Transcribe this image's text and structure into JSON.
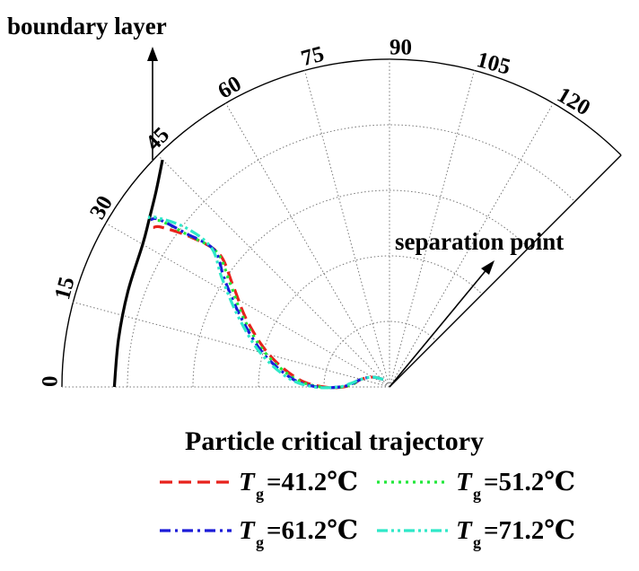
{
  "chart_data": {
    "type": "polar-half",
    "angle_unit": "degrees",
    "angle_ticks": [
      "0",
      "15",
      "30",
      "45",
      "60",
      "75",
      "90",
      "105",
      "120"
    ],
    "radial_gridlines": 5,
    "grid": true,
    "annotations": {
      "boundary_layer": "boundary layer",
      "separation_point": "separation point"
    },
    "boundary_layer_curve": {
      "r_normalized": [
        0.84,
        0.84,
        0.85,
        0.87,
        0.895,
        0.93,
        0.98
      ],
      "theta_deg": [
        0,
        10,
        20,
        30,
        35,
        40,
        45
      ]
    },
    "legend": {
      "title": "Particle critical trajectory",
      "prefix": "T",
      "subscript": "g",
      "placement": "bottom"
    },
    "series": [
      {
        "name": "=41.2℃",
        "color": "#e8221c",
        "dash": "dash",
        "points_r_theta": [
          [
            0.03,
            50
          ],
          [
            0.06,
            30
          ],
          [
            0.09,
            15
          ],
          [
            0.11,
            5
          ],
          [
            0.14,
            0
          ],
          [
            0.2,
            0
          ],
          [
            0.28,
            5
          ],
          [
            0.38,
            15
          ],
          [
            0.48,
            25
          ],
          [
            0.57,
            33
          ],
          [
            0.66,
            38
          ],
          [
            0.76,
            37
          ],
          [
            0.85,
            35
          ],
          [
            0.87,
            34
          ]
        ]
      },
      {
        "name": "=51.2℃",
        "color": "#22e83a",
        "dash": "dot",
        "points_r_theta": [
          [
            0.03,
            50
          ],
          [
            0.06,
            30
          ],
          [
            0.09,
            15
          ],
          [
            0.11,
            5
          ],
          [
            0.145,
            0
          ],
          [
            0.21,
            0
          ],
          [
            0.29,
            5
          ],
          [
            0.39,
            15
          ],
          [
            0.49,
            25
          ],
          [
            0.58,
            33
          ],
          [
            0.67,
            38
          ],
          [
            0.77,
            37
          ],
          [
            0.86,
            36
          ],
          [
            0.88,
            35
          ]
        ]
      },
      {
        "name": "=61.2℃",
        "color": "#1b1bd8",
        "dash": "dashdot",
        "points_r_theta": [
          [
            0.03,
            50
          ],
          [
            0.06,
            30
          ],
          [
            0.09,
            15
          ],
          [
            0.115,
            5
          ],
          [
            0.15,
            0
          ],
          [
            0.22,
            0
          ],
          [
            0.3,
            5
          ],
          [
            0.4,
            15
          ],
          [
            0.5,
            25
          ],
          [
            0.6,
            33
          ],
          [
            0.68,
            38
          ],
          [
            0.78,
            37
          ],
          [
            0.87,
            36
          ],
          [
            0.89,
            35
          ]
        ]
      },
      {
        "name": "=71.2℃",
        "color": "#2ee8c8",
        "dash": "dashdotdot",
        "points_r_theta": [
          [
            0.03,
            50
          ],
          [
            0.06,
            30
          ],
          [
            0.09,
            15
          ],
          [
            0.12,
            5
          ],
          [
            0.155,
            0
          ],
          [
            0.23,
            0
          ],
          [
            0.31,
            5
          ],
          [
            0.41,
            15
          ],
          [
            0.51,
            25
          ],
          [
            0.61,
            33
          ],
          [
            0.69,
            38
          ],
          [
            0.79,
            38
          ],
          [
            0.88,
            36
          ],
          [
            0.9,
            35
          ]
        ]
      }
    ]
  }
}
